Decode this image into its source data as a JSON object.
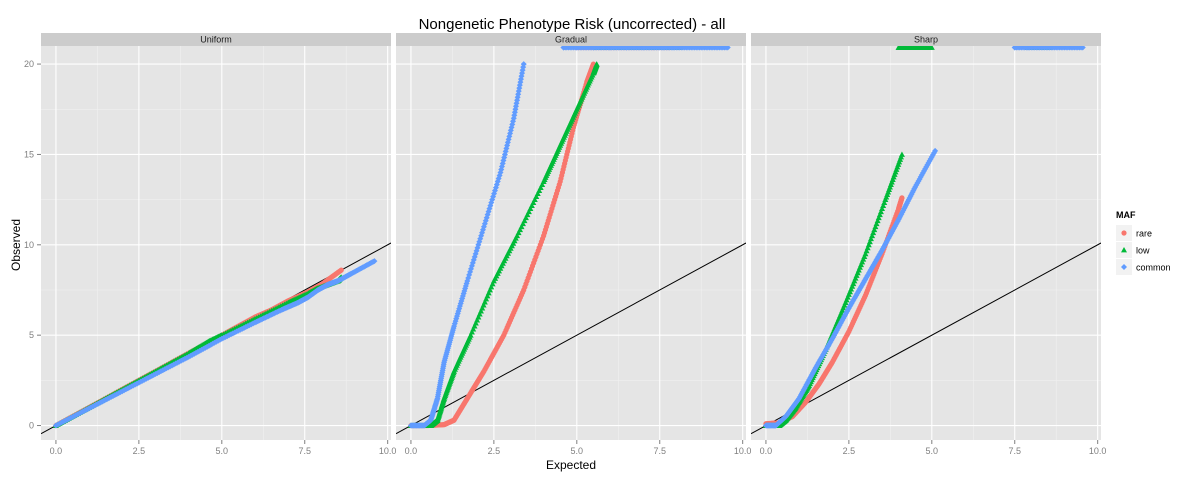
{
  "chart_data": {
    "type": "scatter",
    "title": "Nongenetic Phenotype Risk (uncorrected) - all",
    "xlabel": "Expected",
    "ylabel": "Observed",
    "xlim": [
      0,
      10
    ],
    "ylim": [
      0,
      20
    ],
    "x_ticks": [
      "0.0",
      "2.5",
      "5.0",
      "7.5",
      "10.0"
    ],
    "y_ticks": [
      "0",
      "5",
      "10",
      "15",
      "20"
    ],
    "reference_line": "y = x",
    "legend": {
      "title": "MAF",
      "position": "right",
      "entries": [
        {
          "label": "rare",
          "color": "#F8766D"
        },
        {
          "label": "low",
          "color": "#00BA38"
        },
        {
          "label": "common",
          "color": "#619CFF"
        }
      ]
    },
    "panels": [
      {
        "name": "Uniform",
        "series": [
          {
            "name": "rare",
            "color": "#F8766D",
            "points": [
              [
                0,
                0
              ],
              [
                1,
                1
              ],
              [
                2,
                2
              ],
              [
                3,
                3
              ],
              [
                4,
                4
              ],
              [
                5,
                5
              ],
              [
                6,
                6
              ],
              [
                6.5,
                6.4
              ],
              [
                7,
                6.9
              ],
              [
                7.6,
                7.4
              ],
              [
                8.0,
                7.8
              ],
              [
                8.6,
                8.6
              ]
            ]
          },
          {
            "name": "low",
            "color": "#00BA38",
            "points": [
              [
                0,
                0
              ],
              [
                1,
                1
              ],
              [
                2,
                2
              ],
              [
                3,
                3
              ],
              [
                4,
                4
              ],
              [
                4.6,
                4.65
              ],
              [
                5,
                5
              ],
              [
                6,
                5.9
              ],
              [
                7,
                6.8
              ],
              [
                7.6,
                7.3
              ],
              [
                7.9,
                7.6
              ],
              [
                8.5,
                8.0
              ],
              [
                8.6,
                8.2
              ]
            ]
          },
          {
            "name": "common",
            "color": "#619CFF",
            "points": [
              [
                0,
                0
              ],
              [
                1,
                0.95
              ],
              [
                2,
                1.9
              ],
              [
                3,
                2.85
              ],
              [
                4,
                3.8
              ],
              [
                5,
                4.8
              ],
              [
                6,
                5.7
              ],
              [
                6.8,
                6.4
              ],
              [
                7.3,
                6.8
              ],
              [
                7.6,
                7.1
              ],
              [
                7.9,
                7.5
              ],
              [
                8.2,
                7.8
              ],
              [
                8.5,
                8.0
              ],
              [
                8.9,
                8.4
              ],
              [
                9.6,
                9.1
              ]
            ]
          }
        ]
      },
      {
        "name": "Gradual",
        "series": [
          {
            "name": "rare",
            "color": "#F8766D",
            "points": [
              [
                0,
                0
              ],
              [
                0.5,
                0
              ],
              [
                1.0,
                0.05
              ],
              [
                1.3,
                0.3
              ],
              [
                1.7,
                1.5
              ],
              [
                2.2,
                3.0
              ],
              [
                2.8,
                5.0
              ],
              [
                3.4,
                7.5
              ],
              [
                4.0,
                10.5
              ],
              [
                4.5,
                13.5
              ],
              [
                4.9,
                16.5
              ],
              [
                5.3,
                19.0
              ],
              [
                5.5,
                20.0
              ]
            ]
          },
          {
            "name": "low",
            "color": "#00BA38",
            "points": [
              [
                0,
                0
              ],
              [
                0.6,
                0
              ],
              [
                0.8,
                0.3
              ],
              [
                1.0,
                1.5
              ],
              [
                1.3,
                3.0
              ],
              [
                1.8,
                5.0
              ],
              [
                2.5,
                8.0
              ],
              [
                3.2,
                10.5
              ],
              [
                4.0,
                13.5
              ],
              [
                4.5,
                15.5
              ],
              [
                5.0,
                17.5
              ],
              [
                5.5,
                19.5
              ],
              [
                5.6,
                20.0
              ]
            ]
          },
          {
            "name": "common",
            "color": "#619CFF",
            "points": [
              [
                0,
                0
              ],
              [
                0.4,
                0
              ],
              [
                0.6,
                0.3
              ],
              [
                0.8,
                1.5
              ],
              [
                1.0,
                3.5
              ],
              [
                1.3,
                5.5
              ],
              [
                1.7,
                8.0
              ],
              [
                2.2,
                11.0
              ],
              [
                2.7,
                14.0
              ],
              [
                3.1,
                17.0
              ],
              [
                3.4,
                20.0
              ]
            ]
          }
        ],
        "clipped": [
          {
            "name": "rare",
            "color": "#F8766D",
            "x": [
              5.0,
              6.0,
              7.3,
              7.8
            ]
          },
          {
            "name": "low",
            "color": "#00BA38",
            "x": [
              5.6,
              6.3,
              7.6,
              8.1
            ]
          },
          {
            "name": "common",
            "color": "#619CFF",
            "x": [
              4.6,
              5.0,
              5.5,
              6.0,
              6.5,
              7.0,
              7.6,
              7.9,
              8.3,
              8.8,
              9.6
            ]
          }
        ]
      },
      {
        "name": "Sharp",
        "series": [
          {
            "name": "rare",
            "color": "#F8766D",
            "points": [
              [
                0,
                0.1
              ],
              [
                0.4,
                0.15
              ],
              [
                0.8,
                0.5
              ],
              [
                1.2,
                1.3
              ],
              [
                1.6,
                2.3
              ],
              [
                2.0,
                3.5
              ],
              [
                2.5,
                5.2
              ],
              [
                3.0,
                7.2
              ],
              [
                3.5,
                9.5
              ],
              [
                4.0,
                12.0
              ],
              [
                4.1,
                12.6
              ]
            ]
          },
          {
            "name": "low",
            "color": "#00BA38",
            "points": [
              [
                0,
                0
              ],
              [
                0.4,
                0
              ],
              [
                0.6,
                0.3
              ],
              [
                0.9,
                1.0
              ],
              [
                1.3,
                2.2
              ],
              [
                1.8,
                4.2
              ],
              [
                2.4,
                6.8
              ],
              [
                3.0,
                9.5
              ],
              [
                3.6,
                12.5
              ],
              [
                4.1,
                15.0
              ]
            ]
          },
          {
            "name": "common",
            "color": "#619CFF",
            "points": [
              [
                0,
                0
              ],
              [
                0.3,
                0
              ],
              [
                0.6,
                0.5
              ],
              [
                1.0,
                1.5
              ],
              [
                1.5,
                3.2
              ],
              [
                2.0,
                4.8
              ],
              [
                2.5,
                6.5
              ],
              [
                3.0,
                8.1
              ],
              [
                3.5,
                9.7
              ],
              [
                4.0,
                11.4
              ],
              [
                4.5,
                13.2
              ],
              [
                5.1,
                15.2
              ]
            ]
          }
        ],
        "clipped": [
          {
            "name": "low",
            "color": "#00BA38",
            "x": [
              4.0,
              4.2,
              4.5,
              5.0,
              7.9,
              8.6
            ]
          },
          {
            "name": "common",
            "color": "#619CFF",
            "x": [
              7.5,
              7.9,
              8.3,
              8.9,
              9.6
            ]
          }
        ]
      }
    ]
  }
}
